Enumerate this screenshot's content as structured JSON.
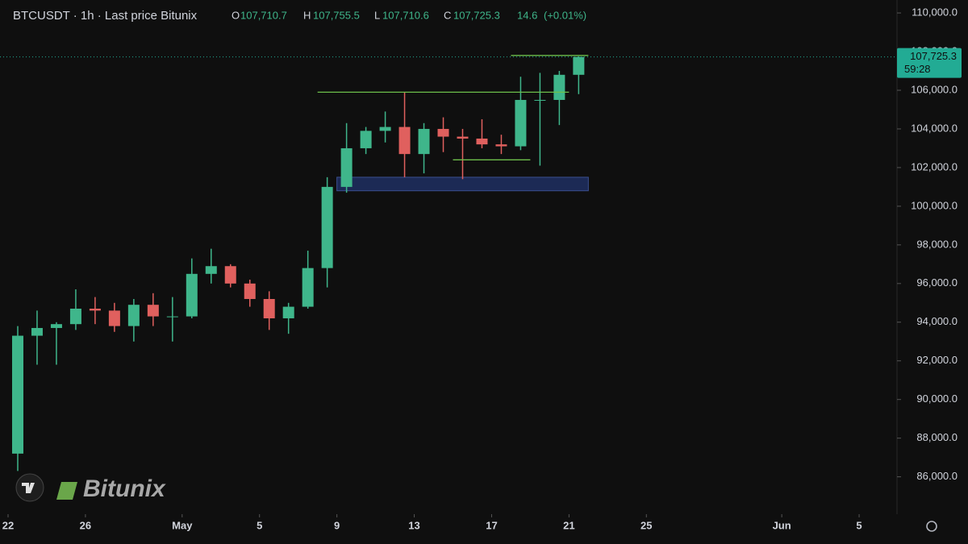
{
  "header": {
    "symbol": "BTCUSDT · 1h · Last price Bitunix",
    "open_label": "O",
    "open": "107,710.7",
    "high_label": "H",
    "high": "107,755.5",
    "low_label": "L",
    "low": "107,710.6",
    "close_label": "C",
    "close": "107,725.3",
    "change": "14.6",
    "change_pct": "(+0.01%)"
  },
  "watermark": "Bitunix",
  "chart_data": {
    "type": "candlestick",
    "x": [
      "Apr 22",
      "Apr 23",
      "Apr 24",
      "Apr 25",
      "Apr 26",
      "Apr 27",
      "Apr 28",
      "Apr 29",
      "Apr 30",
      "May 1",
      "May 2",
      "May 3",
      "May 4",
      "May 5",
      "May 6",
      "May 7",
      "May 8",
      "May 9",
      "May 10",
      "May 11",
      "May 12",
      "May 13",
      "May 14",
      "May 15",
      "May 16",
      "May 17",
      "May 18",
      "May 19",
      "May 20",
      "May 21"
    ],
    "open": [
      87200,
      93300,
      93700,
      93900,
      94700,
      94600,
      93800,
      94900,
      94300,
      94300,
      96500,
      96900,
      96000,
      95200,
      94200,
      94800,
      96800,
      101000,
      103000,
      103900,
      104100,
      102700,
      104000,
      103600,
      103500,
      103200,
      103100,
      105500,
      105500,
      106800
    ],
    "high": [
      93800,
      94600,
      94000,
      95700,
      95300,
      95000,
      95200,
      95500,
      95300,
      97300,
      97800,
      97000,
      96200,
      95600,
      95000,
      97700,
      101500,
      104300,
      104100,
      104900,
      105900,
      104300,
      104600,
      104000,
      104500,
      103700,
      106700,
      106900,
      107000,
      107755.5
    ],
    "low": [
      86300,
      91800,
      91800,
      93600,
      93900,
      93500,
      93000,
      93800,
      93000,
      94200,
      96000,
      95800,
      94800,
      93600,
      93400,
      94700,
      95800,
      100700,
      102700,
      103300,
      101500,
      101700,
      102800,
      101400,
      103000,
      102700,
      102900,
      102100,
      104200,
      105800
    ],
    "close": [
      93300,
      93700,
      93900,
      94700,
      94600,
      93800,
      94900,
      94300,
      94300,
      96500,
      96900,
      96000,
      95200,
      94200,
      94800,
      96800,
      101000,
      103000,
      103900,
      104100,
      102700,
      104000,
      103600,
      103500,
      103200,
      103100,
      105500,
      105500,
      106800,
      107725.3
    ],
    "up_color": "#3fb68b",
    "down_color": "#e0605e",
    "xlim": [
      "Apr 22",
      "Jun 7"
    ],
    "xticks": [
      {
        "value": "Apr 22",
        "label": "22"
      },
      {
        "value": "Apr 26",
        "label": "26"
      },
      {
        "value": "May 1",
        "label": "May"
      },
      {
        "value": "May 5",
        "label": "5"
      },
      {
        "value": "May 9",
        "label": "9"
      },
      {
        "value": "May 13",
        "label": "13"
      },
      {
        "value": "May 17",
        "label": "17"
      },
      {
        "value": "May 21",
        "label": "21"
      },
      {
        "value": "May 25",
        "label": "25"
      },
      {
        "value": "Jun 1",
        "label": "Jun"
      },
      {
        "value": "Jun 5",
        "label": "5"
      }
    ],
    "ylim": [
      84400,
      110670
    ],
    "yticks": [
      {
        "value": 86000,
        "label": "86,000.0"
      },
      {
        "value": 88000,
        "label": "88,000.0"
      },
      {
        "value": 90000,
        "label": "90,000.0"
      },
      {
        "value": 92000,
        "label": "92,000.0"
      },
      {
        "value": 94000,
        "label": "94,000.0"
      },
      {
        "value": 96000,
        "label": "96,000.0"
      },
      {
        "value": 98000,
        "label": "98,000.0"
      },
      {
        "value": 100000,
        "label": "100,000.0"
      },
      {
        "value": 102000,
        "label": "102,000.0"
      },
      {
        "value": 104000,
        "label": "104,000.0"
      },
      {
        "value": 106000,
        "label": "106,000.0"
      },
      {
        "value": 108000,
        "label": "108,000.0"
      },
      {
        "value": 110000,
        "label": "110,000.0"
      }
    ],
    "last_price": {
      "value": 107725.3,
      "label": "107,725.3",
      "countdown": "59:28",
      "color": "#22ab94"
    },
    "levels": [
      {
        "y": 105900,
        "x0": "May 8",
        "x1": "May 21"
      },
      {
        "y": 102400,
        "x0": "May 15",
        "x1": "May 19"
      },
      {
        "y": 107800,
        "x0": "May 18",
        "x1": "May 22"
      }
    ],
    "level_color": "#6dbf4b",
    "zone": {
      "y0": 100800,
      "y1": 101500,
      "x0": "May 9",
      "x1": "May 22",
      "color": "#1c2a55"
    }
  }
}
